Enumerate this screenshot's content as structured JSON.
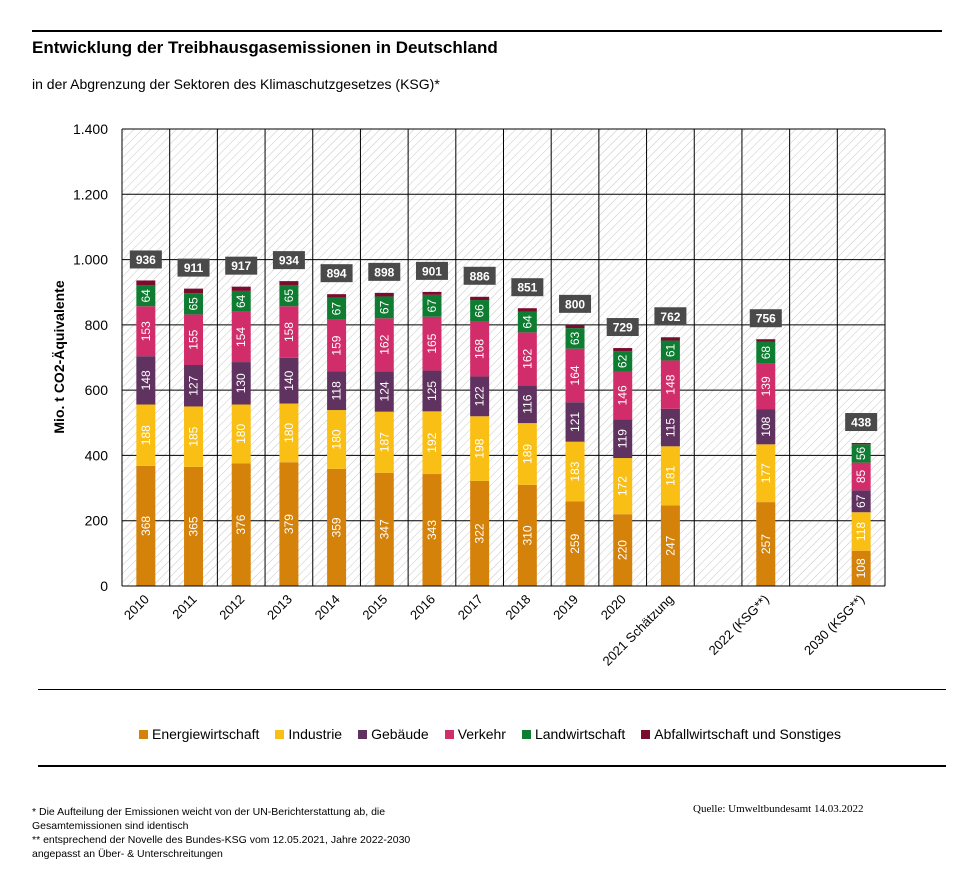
{
  "header": {
    "title": "Entwicklung der Treibhausgasemissionen in Deutschland",
    "subtitle": "in der Abgrenzung der Sektoren des Klimaschutzgesetzes (KSG)*"
  },
  "chart_data": {
    "type": "bar",
    "stacked": true,
    "ylabel": "Mio. t CO2-Äquivalente",
    "ylim": [
      0,
      1400
    ],
    "yticks": [
      0,
      200,
      400,
      600,
      800,
      1000,
      1200,
      1400
    ],
    "ytick_labels": [
      "0",
      "200",
      "400",
      "600",
      "800",
      "1.000",
      "1.200",
      "1.400"
    ],
    "grid": true,
    "legend_position": "bottom",
    "categories": [
      "2010",
      "2011",
      "2012",
      "2013",
      "2014",
      "2015",
      "2016",
      "2017",
      "2018",
      "2019",
      "2020",
      "2021 Schätzung",
      "",
      "2022 (KSG**)",
      "",
      "2030 (KSG**)"
    ],
    "totals": [
      "936",
      "911",
      "917",
      "934",
      "894",
      "898",
      "901",
      "886",
      "851",
      "800",
      "729",
      "762",
      null,
      "756",
      null,
      "438"
    ],
    "series": [
      {
        "name": "Energiewirtschaft",
        "color": "#d5820b",
        "values": [
          368,
          365,
          376,
          379,
          359,
          347,
          343,
          322,
          310,
          259,
          220,
          247,
          null,
          257,
          null,
          108
        ],
        "labels": [
          "368",
          "365",
          "376",
          "379",
          "359",
          "347",
          "343",
          "322",
          "310",
          "259",
          "220",
          "247",
          null,
          "257",
          null,
          "108"
        ]
      },
      {
        "name": "Industrie",
        "color": "#f9bf15",
        "values": [
          188,
          185,
          180,
          180,
          180,
          187,
          192,
          198,
          189,
          183,
          172,
          181,
          null,
          177,
          null,
          118
        ],
        "labels": [
          "188",
          "185",
          "180",
          "180",
          "180",
          "187",
          "192",
          "198",
          "189",
          "183",
          "172",
          "181",
          null,
          "177",
          null,
          "118"
        ]
      },
      {
        "name": "Gebäude",
        "color": "#60325f",
        "values": [
          148,
          127,
          130,
          140,
          118,
          124,
          125,
          122,
          116,
          121,
          119,
          115,
          null,
          108,
          null,
          67
        ],
        "labels": [
          "148",
          "127",
          "130",
          "140",
          "118",
          "124",
          "125",
          "122",
          "116",
          "121",
          "119",
          "115",
          null,
          "108",
          null,
          "67"
        ]
      },
      {
        "name": "Verkehr",
        "color": "#d12d6a",
        "values": [
          153,
          155,
          154,
          158,
          159,
          162,
          165,
          168,
          162,
          164,
          146,
          148,
          null,
          139,
          null,
          85
        ],
        "labels": [
          "153",
          "155",
          "154",
          "158",
          "159",
          "162",
          "165",
          "168",
          "162",
          "164",
          "146",
          "148",
          null,
          "139",
          null,
          "85"
        ]
      },
      {
        "name": "Landwirtschaft",
        "color": "#0e7d32",
        "values": [
          64,
          65,
          64,
          65,
          67,
          67,
          67,
          66,
          64,
          63,
          62,
          61,
          null,
          68,
          null,
          56
        ],
        "labels": [
          "64",
          "65",
          "64",
          "65",
          "67",
          "67",
          "67",
          "66",
          "64",
          "63",
          "62",
          "61",
          null,
          "68",
          null,
          "56"
        ]
      },
      {
        "name": "Abfallwirtschaft und Sonstiges",
        "color": "#7a0c2e",
        "values": [
          15,
          14,
          13,
          12,
          11,
          11,
          9,
          10,
          10,
          10,
          10,
          10,
          null,
          7,
          null,
          4
        ],
        "labels": [
          null,
          null,
          null,
          null,
          null,
          null,
          null,
          null,
          null,
          null,
          null,
          null,
          null,
          null,
          null,
          null
        ]
      }
    ]
  },
  "footnotes": [
    "* Die Aufteilung der Emissionen weicht von der UN-Berichterstattung ab, die",
    "Gesamtemissionen sind identisch",
    "** entsprechend der Novelle des Bundes-KSG vom 12.05.2021, Jahre 2022-2030",
    "angepasst an Über- & Unterschreitungen"
  ],
  "source": "Quelle: Umweltbundesamt  14.03.2022"
}
